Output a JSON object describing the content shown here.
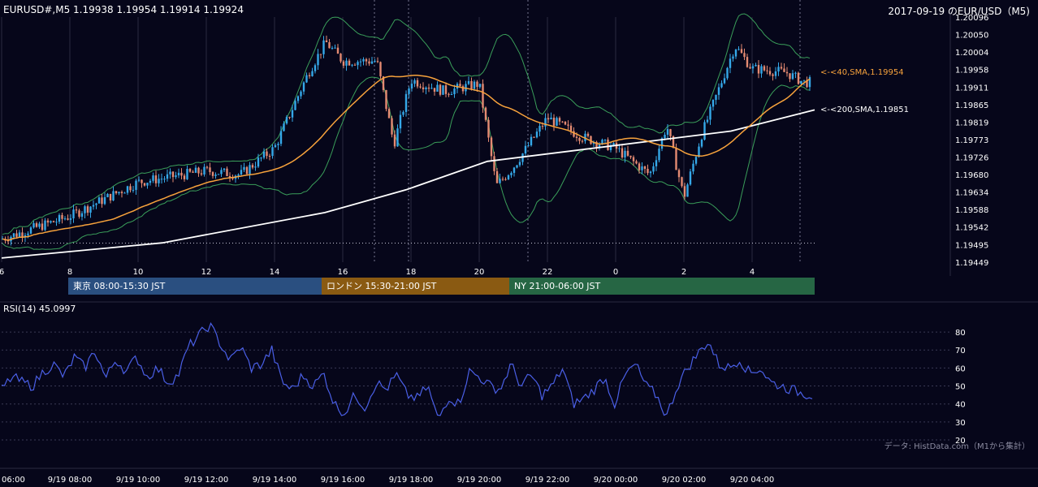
{
  "header": {
    "symbol_line": "EURUSD#,M5 1.19938 1.19954 1.19914 1.19924",
    "date_pair": "2017-09-19 のEUR/USD（M5)"
  },
  "price_axis": {
    "ticks": [
      "1.20096",
      "1.20050",
      "1.20004",
      "1.19958",
      "1.19911",
      "1.19865",
      "1.19819",
      "1.19773",
      "1.19726",
      "1.19680",
      "1.19634",
      "1.19588",
      "1.19542",
      "1.19495",
      "1.19449"
    ]
  },
  "hour_axis": {
    "ticks": [
      "6",
      "8",
      "10",
      "12",
      "14",
      "16",
      "18",
      "20",
      "22",
      "0",
      "2",
      "4"
    ]
  },
  "sessions": {
    "tokyo": "東京 08:00-15:30 JST",
    "london": "ロンドン 15:30-21:00 JST",
    "ny": "NY 21:00-06:00 JST"
  },
  "indicators": {
    "sma40_label": "<-<40,SMA,1.19954",
    "sma200_label": "<-<200,SMA,1.19851",
    "rsi_label": "RSI(14) 45.0997"
  },
  "rsi_axis": {
    "ticks": [
      "80",
      "70",
      "60",
      "50",
      "40",
      "30",
      "20"
    ]
  },
  "time_axis": {
    "ticks": [
      "06:00",
      "9/19 08:00",
      "9/19 10:00",
      "9/19 12:00",
      "9/19 14:00",
      "9/19 16:00",
      "9/19 18:00",
      "9/19 20:00",
      "9/19 22:00",
      "9/20 00:00",
      "9/20 02:00",
      "9/20 04:00"
    ]
  },
  "credit": "データ: HistData.com（M1から集計）",
  "colors": {
    "background": "#06061a",
    "bull": "#35a8e8",
    "bear": "#e48a72",
    "sma40": "#f7a23c",
    "sma200": "#ffffff",
    "bollinger": "#3a9e5a",
    "rsi": "#4a5fe6",
    "grid": "#2a2a40"
  },
  "chart_data": [
    {
      "type": "candlestick",
      "title": "EURUSD#,M5",
      "timeframe": "M5",
      "ylim": [
        1.19449,
        1.20096
      ],
      "x_hours": [
        "6",
        "8",
        "10",
        "12",
        "14",
        "16",
        "18",
        "20",
        "22",
        "0",
        "2",
        "4"
      ],
      "last_ohlc": {
        "open": 1.19938,
        "high": 1.19954,
        "low": 1.19914,
        "close": 1.19924
      },
      "overlays": [
        {
          "name": "SMA 40",
          "last": 1.19954
        },
        {
          "name": "SMA 200",
          "last": 1.19851
        },
        {
          "name": "Bollinger Bands"
        }
      ],
      "approx_close_path": [
        [
          6,
          1.1951
        ],
        [
          8,
          1.1957
        ],
        [
          10,
          1.1966
        ],
        [
          12,
          1.1969
        ],
        [
          13,
          1.1968
        ],
        [
          14,
          1.1975
        ],
        [
          15,
          1.1995
        ],
        [
          15.5,
          1.2003
        ],
        [
          16,
          1.1998
        ],
        [
          17,
          1.1998
        ],
        [
          17.5,
          1.1976
        ],
        [
          18,
          1.1993
        ],
        [
          19,
          1.199
        ],
        [
          20,
          1.1992
        ],
        [
          20.5,
          1.1965
        ],
        [
          21,
          1.197
        ],
        [
          22,
          1.1983
        ],
        [
          23,
          1.1978
        ],
        [
          0,
          1.1975
        ],
        [
          1,
          1.1968
        ],
        [
          1.5,
          1.1981
        ],
        [
          2,
          1.1962
        ],
        [
          2.5,
          1.1978
        ],
        [
          3,
          1.199
        ],
        [
          3.5,
          1.2002
        ],
        [
          4,
          1.1996
        ],
        [
          5,
          1.1995
        ],
        [
          5.5,
          1.19924
        ]
      ]
    },
    {
      "type": "line",
      "title": "RSI(14) 45.0997",
      "ylim": [
        20,
        85
      ],
      "y_ticks": [
        20,
        30,
        40,
        50,
        60,
        70,
        80
      ],
      "approx_values": [
        48,
        55,
        52,
        50,
        58,
        62,
        55,
        66,
        60,
        70,
        54,
        65,
        58,
        66,
        55,
        60,
        52,
        56,
        72,
        78,
        84,
        74,
        64,
        72,
        60,
        62,
        70,
        52,
        48,
        56,
        50,
        57,
        40,
        35,
        45,
        38,
        52,
        48,
        56,
        45,
        43,
        50,
        31,
        44,
        40,
        58,
        55,
        50,
        48,
        62,
        50,
        56,
        45,
        50,
        60,
        40,
        43,
        48,
        55,
        40,
        56,
        62,
        50,
        45,
        33,
        50,
        60,
        68,
        75,
        62,
        60,
        65,
        57,
        60,
        52,
        50,
        48,
        46,
        45
      ]
    }
  ]
}
